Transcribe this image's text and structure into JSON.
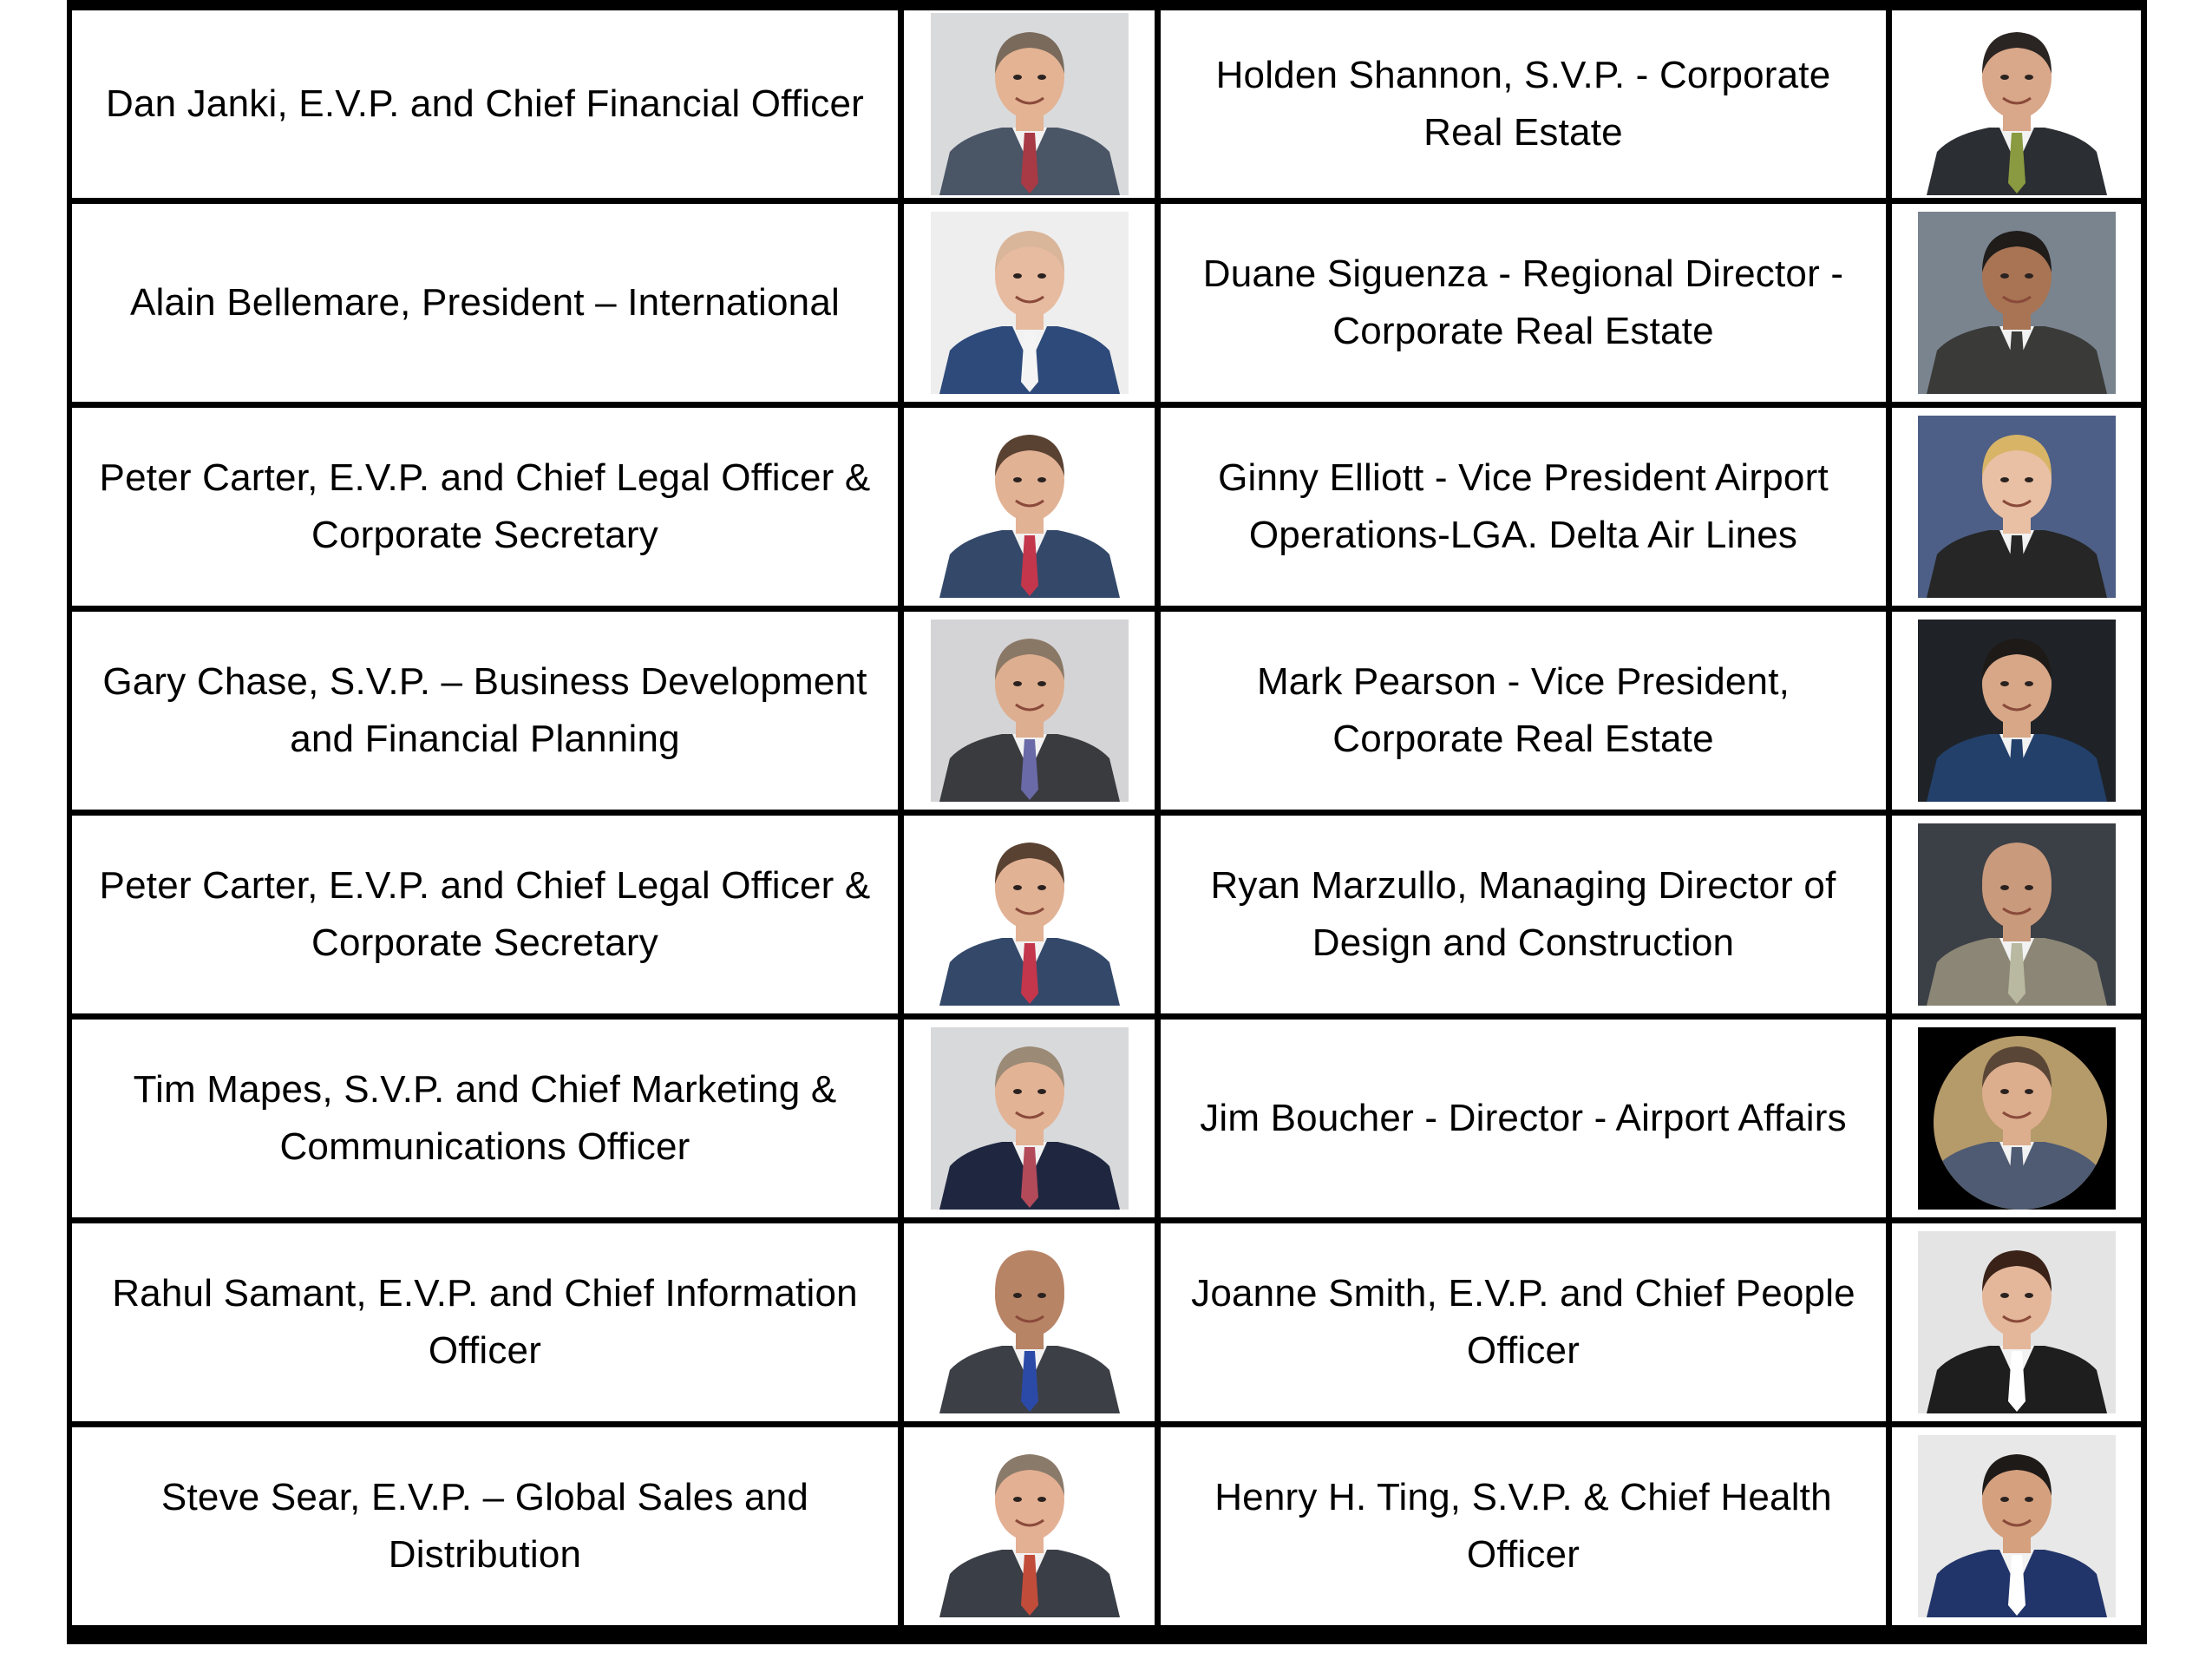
{
  "rows": [
    {
      "left": {
        "name": "Dan Janki, E.V.P. and Chief Financial Officer"
      },
      "left_photo": {
        "bg": "#d9dadc",
        "suit": "#4a5566",
        "tie": "#a83a45",
        "skin": "#e3b393",
        "hair": "#7a6a5c"
      },
      "right": {
        "name": "Holden Shannon, S.V.P. - Corporate\nReal Estate"
      },
      "right_photo": {
        "bg": "#ffffff",
        "suit": "#2b2e33",
        "tie": "#8a9a40",
        "skin": "#d9a789",
        "hair": "#2a2522"
      }
    },
    {
      "left": {
        "name": "Alain Bellemare, President – International"
      },
      "left_photo": {
        "bg": "#eeeeee",
        "suit": "#2d4a7a",
        "tie": "#f4f4f4",
        "skin": "#e7bba0",
        "hair": "#d9b59a"
      },
      "right": {
        "name": "Duane Siguenza - Regional Director -\nCorporate Real Estate"
      },
      "right_photo": {
        "bg": "#7a848f",
        "suit": "#3a3a38",
        "tie": "#3a3a38",
        "skin": "#a87454",
        "hair": "#1f1c1a"
      }
    },
    {
      "left": {
        "name": "Peter Carter, E.V.P. and Chief Legal Officer &\nCorporate Secretary"
      },
      "left_photo": {
        "bg": "#ffffff",
        "suit": "#34496a",
        "tie": "#c4364b",
        "skin": "#e2b295",
        "hair": "#5a4232"
      },
      "right": {
        "name": "Ginny Elliott - Vice President Airport\nOperations-LGA. Delta Air Lines"
      },
      "right_photo": {
        "bg": "#4d5f86",
        "suit": "#262626",
        "tie": "#262626",
        "skin": "#e9c0a4",
        "hair": "#d8b467"
      }
    },
    {
      "left": {
        "name": "Gary Chase, S.V.P. – Business Development\nand Financial Planning"
      },
      "left_photo": {
        "bg": "#d4d4d6",
        "suit": "#3a3b3f",
        "tie": "#6a6aa8",
        "skin": "#deae90",
        "hair": "#8a7866"
      },
      "right": {
        "name": "Mark Pearson - Vice President,\nCorporate Real Estate"
      },
      "right_photo": {
        "bg": "#1f2328",
        "suit": "#23406b",
        "tie": "#23406b",
        "skin": "#d7a787",
        "hair": "#1e1a18"
      }
    },
    {
      "left": {
        "name": "Peter Carter, E.V.P. and Chief Legal Officer &\nCorporate Secretary"
      },
      "left_photo": {
        "bg": "#ffffff",
        "suit": "#34496a",
        "tie": "#c4364b",
        "skin": "#e2b295",
        "hair": "#5a4232"
      },
      "right": {
        "name": "Ryan Marzullo, Managing Director of\nDesign and Construction"
      },
      "right_photo": {
        "bg": "#3b3f46",
        "suit": "#8b8675",
        "tie": "#b8b9a0",
        "skin": "#c99a7c",
        "hair": "#c99a7c"
      }
    },
    {
      "left": {
        "name": "Tim Mapes, S.V.P. and Chief Marketing &\nCommunications Officer"
      },
      "left_photo": {
        "bg": "#d8d9db",
        "suit": "#1f2740",
        "tie": "#b24a5a",
        "skin": "#e3b396",
        "hair": "#9a8a76"
      },
      "right": {
        "name": "Jim Boucher - Director - Airport Affairs"
      },
      "right_photo": {
        "bg": "#b59a6a",
        "suit": "#4e5b73",
        "tie": "#4e5b73",
        "skin": "#dcae8e",
        "hair": "#5a4636"
      }
    },
    {
      "left": {
        "name": "Rahul Samant, E.V.P. and Chief Information\nOfficer"
      },
      "left_photo": {
        "bg": "#ffffff",
        "suit": "#3c4046",
        "tie": "#2b4aa8",
        "skin": "#b88466",
        "hair": "#b88466"
      },
      "right": {
        "name": "Joanne Smith, E.V.P. and Chief People\nOfficer"
      },
      "right_photo": {
        "bg": "#e4e4e4",
        "suit": "#1e1e1e",
        "tie": "#ffffff",
        "skin": "#e4b79b",
        "hair": "#3a2218"
      }
    },
    {
      "left": {
        "name": "Steve Sear, E.V.P. – Global Sales and\nDistribution"
      },
      "left_photo": {
        "bg": "#ffffff",
        "suit": "#3a3e46",
        "tie": "#c24c3a",
        "skin": "#e4b093",
        "hair": "#8a7a6a"
      },
      "right": {
        "name": "Henry H. Ting, S.V.P. & Chief Health\nOfficer"
      },
      "right_photo": {
        "bg": "#e8e8e8",
        "suit": "#22356a",
        "tie": "#ffffff",
        "skin": "#d4a07e",
        "hair": "#1e1a18"
      }
    }
  ]
}
